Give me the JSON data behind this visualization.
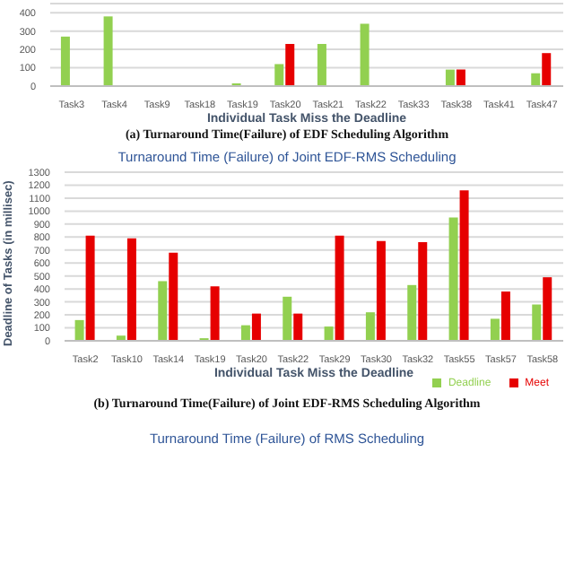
{
  "chart_data": [
    {
      "type": "bar",
      "categories": [
        "Task3",
        "Task4",
        "Task9",
        "Task18",
        "Task19",
        "Task20",
        "Task21",
        "Task22",
        "Task33",
        "Task38",
        "Task41",
        "Task47"
      ],
      "xlabel": "Individual Task Miss the Deadline",
      "ylim": [
        0,
        450
      ],
      "yticks": [
        0,
        100,
        200,
        300,
        400
      ],
      "grid": "y",
      "series": [
        {
          "color": "#92d050",
          "values": [
            270,
            380,
            null,
            null,
            15,
            120,
            230,
            340,
            null,
            90,
            null,
            70
          ]
        },
        {
          "color": "#e60000",
          "values": [
            null,
            null,
            null,
            null,
            null,
            230,
            null,
            null,
            null,
            90,
            null,
            180
          ]
        }
      ],
      "annotations": [
        "(a) Turnaround Time(Failure) of EDF Scheduling Algorithm"
      ]
    },
    {
      "type": "bar",
      "title": "Turnaround Time (Failure) of Joint EDF-RMS Scheduling",
      "categories": [
        "Task2",
        "Task10",
        "Task14",
        "Task19",
        "Task20",
        "Task22",
        "Task29",
        "Task30",
        "Task32",
        "Task55",
        "Task57",
        "Task58"
      ],
      "xlabel": "Individual Task Miss the Deadline",
      "ylabel": "Deadline of Tasks (in millisec)",
      "ylim": [
        0,
        1300
      ],
      "yticks": [
        0,
        100,
        200,
        300,
        400,
        500,
        600,
        700,
        800,
        900,
        1000,
        1100,
        1200,
        1300
      ],
      "grid": "y",
      "legend": "bottom right",
      "series": [
        {
          "name": "Deadline",
          "color": "#92d050",
          "values": [
            160,
            40,
            460,
            20,
            120,
            340,
            110,
            220,
            430,
            950,
            170,
            280
          ]
        },
        {
          "name": "Meet",
          "color": "#e60000",
          "values": [
            810,
            790,
            680,
            420,
            210,
            210,
            810,
            770,
            760,
            1160,
            380,
            490
          ]
        }
      ],
      "annotations": [
        "(b) Turnaround Time(Failure) of Joint EDF-RMS Scheduling Algorithm"
      ]
    },
    {
      "type": "other",
      "title": "Turnaround Time (Failure) of RMS Scheduling"
    }
  ]
}
